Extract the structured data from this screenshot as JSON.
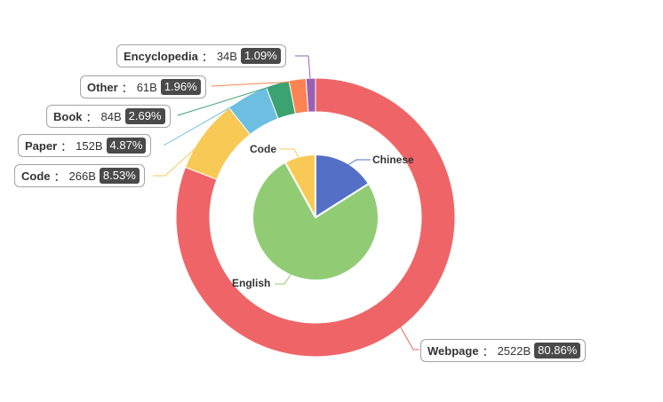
{
  "chart_data": [
    {
      "type": "pie",
      "style": "donut",
      "slices": [
        {
          "name": "Webpage",
          "value_label": "2522B",
          "percent": 80.86,
          "color": "#ef6567"
        },
        {
          "name": "Code",
          "value_label": "266B",
          "percent": 8.53,
          "color": "#f9c956"
        },
        {
          "name": "Paper",
          "value_label": "152B",
          "percent": 4.87,
          "color": "#6dbfe1"
        },
        {
          "name": "Book",
          "value_label": "84B",
          "percent": 2.69,
          "color": "#3ba272"
        },
        {
          "name": "Other",
          "value_label": "61B",
          "percent": 1.96,
          "color": "#fc8452"
        },
        {
          "name": "Encyclopedia",
          "value_label": "34B",
          "percent": 1.09,
          "color": "#9a60b4"
        }
      ]
    },
    {
      "type": "pie",
      "slices": [
        {
          "name": "Chinese",
          "percent": 16,
          "color": "#5470c6"
        },
        {
          "name": "English",
          "percent": 76,
          "color": "#91cc75"
        },
        {
          "name": "Code",
          "percent": 8,
          "color": "#f9c956"
        }
      ]
    }
  ],
  "outer_labels": [
    {
      "name": "Encyclopedia",
      "value": "34B",
      "percent": "1.09%"
    },
    {
      "name": "Other",
      "value": "61B",
      "percent": "1.96%"
    },
    {
      "name": "Book",
      "value": "84B",
      "percent": "2.69%"
    },
    {
      "name": "Paper",
      "value": "152B",
      "percent": "4.87%"
    },
    {
      "name": "Code",
      "value": "266B",
      "percent": "8.53%"
    },
    {
      "name": "Webpage",
      "value": "2522B",
      "percent": "80.86%"
    }
  ],
  "inner_labels": [
    "Code",
    "Chinese",
    "English"
  ],
  "separator": "："
}
